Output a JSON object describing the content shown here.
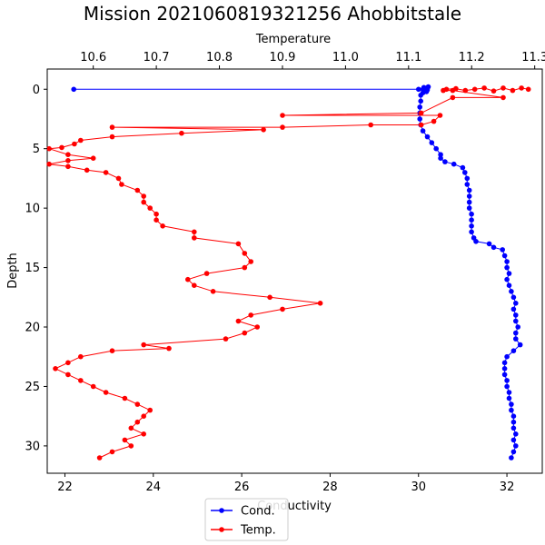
{
  "chart_data": {
    "type": "line",
    "title": "Mission 2021060819321256 Ahobbitstale",
    "ylabel": "Depth",
    "ylim": [
      32.3,
      -1.7
    ],
    "y_inverted": true,
    "yticks": [
      0,
      5,
      10,
      15,
      20,
      25,
      30
    ],
    "legend_placement": "bottom-center",
    "grid": false,
    "axes": [
      {
        "id": "bottom",
        "position": "bottom",
        "label": "Conductivity",
        "xlim": [
          21.6,
          32.8
        ],
        "ticks": [
          22,
          24,
          26,
          28,
          30,
          32
        ]
      },
      {
        "id": "top",
        "position": "top",
        "label": "Temperature",
        "xlim": [
          10.527,
          11.312
        ],
        "ticks": [
          10.6,
          10.7,
          10.8,
          10.9,
          11.0,
          11.1,
          11.2,
          11.3
        ]
      }
    ],
    "series": [
      {
        "name": "Cond.",
        "axis": "bottom",
        "color": "#0000ff",
        "points": [
          [
            22.2,
            0
          ],
          [
            30.0,
            0
          ],
          [
            30.1,
            0
          ],
          [
            30.12,
            -0.15
          ],
          [
            30.15,
            0.1
          ],
          [
            30.18,
            -0.1
          ],
          [
            30.2,
            0.05
          ],
          [
            30.22,
            -0.2
          ],
          [
            30.18,
            0.2
          ],
          [
            30.1,
            0.3
          ],
          [
            30.05,
            0.5
          ],
          [
            30.05,
            1.0
          ],
          [
            30.03,
            1.5
          ],
          [
            30.03,
            2.0
          ],
          [
            30.03,
            2.5
          ],
          [
            30.05,
            3.0
          ],
          [
            30.1,
            3.5
          ],
          [
            30.2,
            4.0
          ],
          [
            30.3,
            4.5
          ],
          [
            30.4,
            5.0
          ],
          [
            30.5,
            5.5
          ],
          [
            30.5,
            5.8
          ],
          [
            30.6,
            6.1
          ],
          [
            30.8,
            6.3
          ],
          [
            31.0,
            6.6
          ],
          [
            31.05,
            7.0
          ],
          [
            31.1,
            7.5
          ],
          [
            31.1,
            8.0
          ],
          [
            31.15,
            8.5
          ],
          [
            31.15,
            9.0
          ],
          [
            31.15,
            9.5
          ],
          [
            31.15,
            10.0
          ],
          [
            31.2,
            10.5
          ],
          [
            31.2,
            11.0
          ],
          [
            31.2,
            11.5
          ],
          [
            31.2,
            12.0
          ],
          [
            31.25,
            12.5
          ],
          [
            31.3,
            12.8
          ],
          [
            31.6,
            13.0
          ],
          [
            31.7,
            13.3
          ],
          [
            31.9,
            13.5
          ],
          [
            31.95,
            14.0
          ],
          [
            32.0,
            14.5
          ],
          [
            32.0,
            15.0
          ],
          [
            32.05,
            15.5
          ],
          [
            32.0,
            16.0
          ],
          [
            32.05,
            16.5
          ],
          [
            32.1,
            17.0
          ],
          [
            32.15,
            17.5
          ],
          [
            32.2,
            18.0
          ],
          [
            32.15,
            18.5
          ],
          [
            32.2,
            19.0
          ],
          [
            32.2,
            19.5
          ],
          [
            32.25,
            20.0
          ],
          [
            32.2,
            20.5
          ],
          [
            32.2,
            21.0
          ],
          [
            32.3,
            21.5
          ],
          [
            32.15,
            22.0
          ],
          [
            32.0,
            22.5
          ],
          [
            31.95,
            23.0
          ],
          [
            31.95,
            23.5
          ],
          [
            31.95,
            24.0
          ],
          [
            32.0,
            24.5
          ],
          [
            32.0,
            25.0
          ],
          [
            32.05,
            25.5
          ],
          [
            32.05,
            26.0
          ],
          [
            32.1,
            26.5
          ],
          [
            32.1,
            27.0
          ],
          [
            32.15,
            27.5
          ],
          [
            32.15,
            28.0
          ],
          [
            32.15,
            28.5
          ],
          [
            32.2,
            29.0
          ],
          [
            32.15,
            29.5
          ],
          [
            32.2,
            30.0
          ],
          [
            32.15,
            30.5
          ],
          [
            32.1,
            31.0
          ]
        ]
      },
      {
        "name": "Temp.",
        "axis": "top",
        "color": "#ff0000",
        "points": [
          [
            11.29,
            0
          ],
          [
            11.279,
            -0.1
          ],
          [
            11.265,
            0.1
          ],
          [
            11.25,
            -0.1
          ],
          [
            11.235,
            0.15
          ],
          [
            11.22,
            -0.1
          ],
          [
            11.205,
            0
          ],
          [
            11.19,
            0.1
          ],
          [
            11.175,
            -0.05
          ],
          [
            11.16,
            0
          ],
          [
            11.155,
            0.1
          ],
          [
            11.17,
            0.1
          ],
          [
            11.25,
            0.7
          ],
          [
            11.17,
            0.7
          ],
          [
            11.12,
            2.0
          ],
          [
            10.9,
            2.2
          ],
          [
            11.15,
            2.2
          ],
          [
            11.14,
            2.7
          ],
          [
            11.12,
            3.0
          ],
          [
            11.04,
            3.0
          ],
          [
            10.9,
            3.2
          ],
          [
            10.63,
            3.2
          ],
          [
            10.87,
            3.4
          ],
          [
            10.74,
            3.7
          ],
          [
            10.63,
            4.0
          ],
          [
            10.58,
            4.3
          ],
          [
            10.57,
            4.6
          ],
          [
            10.55,
            4.9
          ],
          [
            10.53,
            5.0
          ],
          [
            10.56,
            5.5
          ],
          [
            10.6,
            5.8
          ],
          [
            10.56,
            6.0
          ],
          [
            10.53,
            6.3
          ],
          [
            10.56,
            6.5
          ],
          [
            10.59,
            6.8
          ],
          [
            10.62,
            7.0
          ],
          [
            10.64,
            7.5
          ],
          [
            10.645,
            8.0
          ],
          [
            10.67,
            8.5
          ],
          [
            10.68,
            9.0
          ],
          [
            10.68,
            9.5
          ],
          [
            10.69,
            10.0
          ],
          [
            10.7,
            10.5
          ],
          [
            10.7,
            11.0
          ],
          [
            10.71,
            11.5
          ],
          [
            10.76,
            12.0
          ],
          [
            10.76,
            12.5
          ],
          [
            10.83,
            13.0
          ],
          [
            10.84,
            13.8
          ],
          [
            10.85,
            14.5
          ],
          [
            10.84,
            15.0
          ],
          [
            10.78,
            15.5
          ],
          [
            10.75,
            16.0
          ],
          [
            10.76,
            16.5
          ],
          [
            10.79,
            17.0
          ],
          [
            10.88,
            17.5
          ],
          [
            10.96,
            18.0
          ],
          [
            10.9,
            18.5
          ],
          [
            10.85,
            19.0
          ],
          [
            10.83,
            19.5
          ],
          [
            10.86,
            20.0
          ],
          [
            10.84,
            20.5
          ],
          [
            10.81,
            21.0
          ],
          [
            10.68,
            21.5
          ],
          [
            10.72,
            21.8
          ],
          [
            10.63,
            22.0
          ],
          [
            10.58,
            22.5
          ],
          [
            10.56,
            23.0
          ],
          [
            10.54,
            23.5
          ],
          [
            10.56,
            24.0
          ],
          [
            10.58,
            24.5
          ],
          [
            10.6,
            25.0
          ],
          [
            10.62,
            25.5
          ],
          [
            10.65,
            26.0
          ],
          [
            10.67,
            26.5
          ],
          [
            10.69,
            27.0
          ],
          [
            10.68,
            27.5
          ],
          [
            10.67,
            28.0
          ],
          [
            10.66,
            28.5
          ],
          [
            10.68,
            29.0
          ],
          [
            10.65,
            29.5
          ],
          [
            10.66,
            30.0
          ],
          [
            10.63,
            30.5
          ],
          [
            10.61,
            31.0
          ]
        ]
      }
    ]
  }
}
